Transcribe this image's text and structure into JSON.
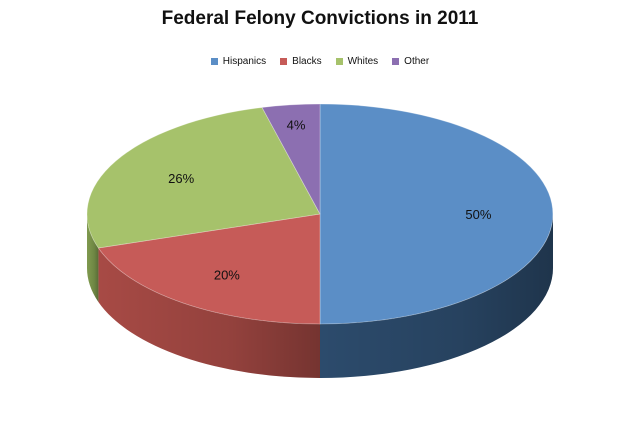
{
  "chart_data": {
    "type": "pie",
    "title": "Federal Felony Convictions in 2011",
    "legend_position": "top",
    "three_d": true,
    "series": [
      {
        "name": "Hispanics",
        "value": 50,
        "label": "50%",
        "color": "#5B8EC6",
        "side_color": "#2C4B6C"
      },
      {
        "name": "Blacks",
        "value": 20,
        "label": "20%",
        "color": "#C65B58",
        "side_color": "#A74A45"
      },
      {
        "name": "Whites",
        "value": 26,
        "label": "26%",
        "color": "#A6C26B",
        "side_color": "#7F9A4E"
      },
      {
        "name": "Other",
        "value": 4,
        "label": "4%",
        "color": "#8C6FB1",
        "side_color": "#6A5388"
      }
    ]
  }
}
